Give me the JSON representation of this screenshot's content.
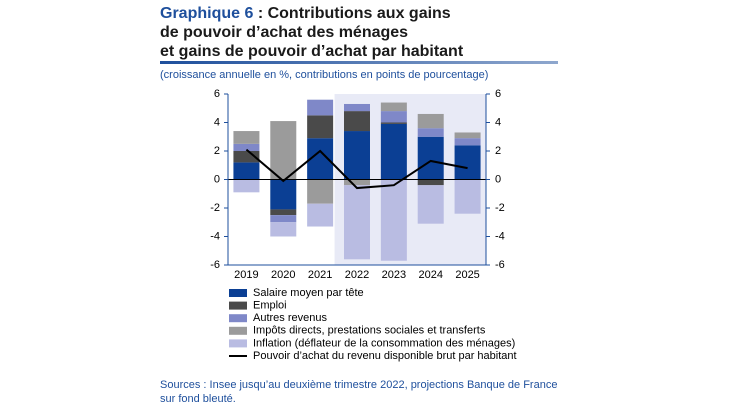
{
  "chart_data": {
    "type": "bar",
    "title": {
      "label": "Graphique 6",
      "lines": [
        ": Contributions aux gains",
        "de pouvoir d’achat des ménages",
        "et gains de pouvoir d’achat par habitant"
      ]
    },
    "subtitle": "(croissance annuelle en %, contributions en points de pourcentage)",
    "source": [
      "Sources : Insee jusqu’au deuxième trimestre 2022, projections Banque de France",
      "sur fond bleuté."
    ],
    "categories": [
      "2019",
      "2020",
      "2021",
      "2022",
      "2023",
      "2024",
      "2025"
    ],
    "series": [
      {
        "name": "Salaire moyen par tête",
        "color": "#0b3f94",
        "type": "bar",
        "values": [
          1.2,
          -2.1,
          2.9,
          3.4,
          3.9,
          3.0,
          2.4
        ]
      },
      {
        "name": "Emploi",
        "color": "#4a4a4a",
        "type": "bar",
        "values": [
          0.8,
          -0.4,
          1.6,
          1.4,
          0.1,
          -0.4,
          0
        ]
      },
      {
        "name": "Autres revenus",
        "color": "#7f88c8",
        "type": "bar",
        "values": [
          0.5,
          -0.5,
          1.1,
          0.5,
          0.8,
          0.6,
          0.5
        ]
      },
      {
        "name": "Impôts directs, prestations sociales et transferts",
        "color": "#9b9b9b",
        "type": "bar",
        "values": [
          0.9,
          4.1,
          -1.7,
          -0.4,
          0.6,
          1.0,
          0.4
        ]
      },
      {
        "name": "Inflation (déflateur de la consommation des ménages)",
        "color": "#b9bce2",
        "type": "bar",
        "values": [
          -0.9,
          -1.0,
          -1.6,
          -5.2,
          -5.7,
          -2.7,
          -2.4
        ]
      },
      {
        "name": "Pouvoir d’achat du revenu disponible brut par habitant",
        "color": "#000000",
        "type": "line",
        "values": [
          2.1,
          -0.1,
          2.0,
          -0.6,
          -0.4,
          1.3,
          0.8
        ]
      }
    ],
    "ylim": [
      -6,
      6
    ],
    "yticks": [
      -6,
      -4,
      -2,
      0,
      2,
      4,
      6
    ]
  }
}
